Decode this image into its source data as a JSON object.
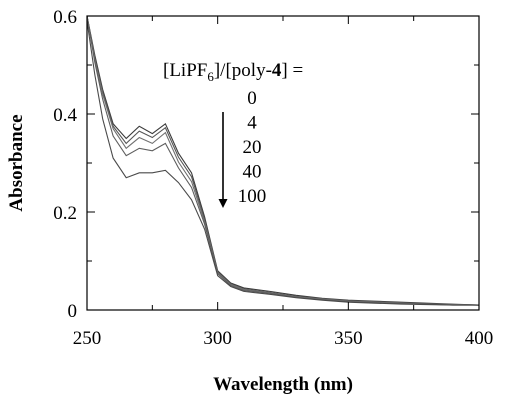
{
  "chart_data": {
    "type": "line",
    "xlabel": "Wavelength (nm)",
    "ylabel": "Absorbance",
    "xlim": [
      250,
      400
    ],
    "ylim": [
      0,
      0.6
    ],
    "x_ticks": [
      250,
      300,
      350,
      400
    ],
    "x_tick_labels": [
      "250",
      "300",
      "350",
      "400"
    ],
    "y_ticks": [
      0,
      0.2,
      0.4,
      0.6
    ],
    "y_tick_labels": [
      "0",
      "0.2",
      "0.4",
      "0.6"
    ],
    "x_minor_ticks": [
      275,
      325,
      375
    ],
    "y_minor_ticks": [
      0.1,
      0.3,
      0.5
    ],
    "grid": false,
    "legend": {
      "title_prefix": "[LiPF",
      "title_sub": "6",
      "title_mid": "]/[poly-",
      "title_bold": "4",
      "title_suffix": "] =",
      "entries": [
        "0",
        "4",
        "20",
        "40",
        "100"
      ],
      "arrow_direction": "down"
    },
    "series": [
      {
        "label": "0",
        "color": "#3a3a3a",
        "x": [
          250,
          253,
          256,
          260,
          265,
          270,
          275,
          280,
          285,
          290,
          295,
          300,
          305,
          310,
          320,
          330,
          340,
          350,
          360,
          370,
          380,
          390,
          400
        ],
        "y": [
          0.6,
          0.52,
          0.45,
          0.38,
          0.35,
          0.375,
          0.36,
          0.38,
          0.32,
          0.28,
          0.19,
          0.08,
          0.055,
          0.045,
          0.038,
          0.03,
          0.024,
          0.02,
          0.018,
          0.016,
          0.014,
          0.012,
          0.01
        ]
      },
      {
        "label": "4",
        "color": "#555555",
        "x": [
          250,
          253,
          256,
          260,
          265,
          270,
          275,
          280,
          285,
          290,
          295,
          300,
          305,
          310,
          320,
          330,
          340,
          350,
          360,
          370,
          380,
          390,
          400
        ],
        "y": [
          0.6,
          0.515,
          0.445,
          0.375,
          0.34,
          0.365,
          0.352,
          0.372,
          0.312,
          0.272,
          0.185,
          0.078,
          0.053,
          0.043,
          0.036,
          0.028,
          0.023,
          0.019,
          0.017,
          0.015,
          0.013,
          0.011,
          0.01
        ]
      },
      {
        "label": "20",
        "color": "#707070",
        "x": [
          250,
          253,
          256,
          260,
          265,
          270,
          275,
          280,
          285,
          290,
          295,
          300,
          305,
          310,
          320,
          330,
          340,
          350,
          360,
          370,
          380,
          390,
          400
        ],
        "y": [
          0.6,
          0.51,
          0.44,
          0.37,
          0.33,
          0.352,
          0.34,
          0.362,
          0.302,
          0.262,
          0.18,
          0.076,
          0.052,
          0.042,
          0.035,
          0.027,
          0.022,
          0.018,
          0.016,
          0.014,
          0.012,
          0.011,
          0.01
        ]
      },
      {
        "label": "40",
        "color": "#5e5e5e",
        "x": [
          250,
          253,
          256,
          260,
          265,
          270,
          275,
          280,
          285,
          290,
          295,
          300,
          305,
          310,
          320,
          330,
          340,
          350,
          360,
          370,
          380,
          390,
          400
        ],
        "y": [
          0.6,
          0.505,
          0.43,
          0.355,
          0.315,
          0.33,
          0.325,
          0.34,
          0.29,
          0.25,
          0.175,
          0.074,
          0.05,
          0.04,
          0.034,
          0.026,
          0.021,
          0.017,
          0.015,
          0.013,
          0.012,
          0.01,
          0.01
        ]
      },
      {
        "label": "100",
        "color": "#4a4a4a",
        "x": [
          250,
          253,
          256,
          260,
          265,
          270,
          275,
          280,
          285,
          290,
          295,
          300,
          305,
          310,
          320,
          330,
          340,
          350,
          360,
          370,
          380,
          390,
          400
        ],
        "y": [
          0.59,
          0.48,
          0.39,
          0.31,
          0.27,
          0.28,
          0.28,
          0.285,
          0.26,
          0.225,
          0.165,
          0.07,
          0.048,
          0.038,
          0.032,
          0.025,
          0.02,
          0.016,
          0.014,
          0.012,
          0.011,
          0.01,
          0.01
        ]
      }
    ]
  }
}
